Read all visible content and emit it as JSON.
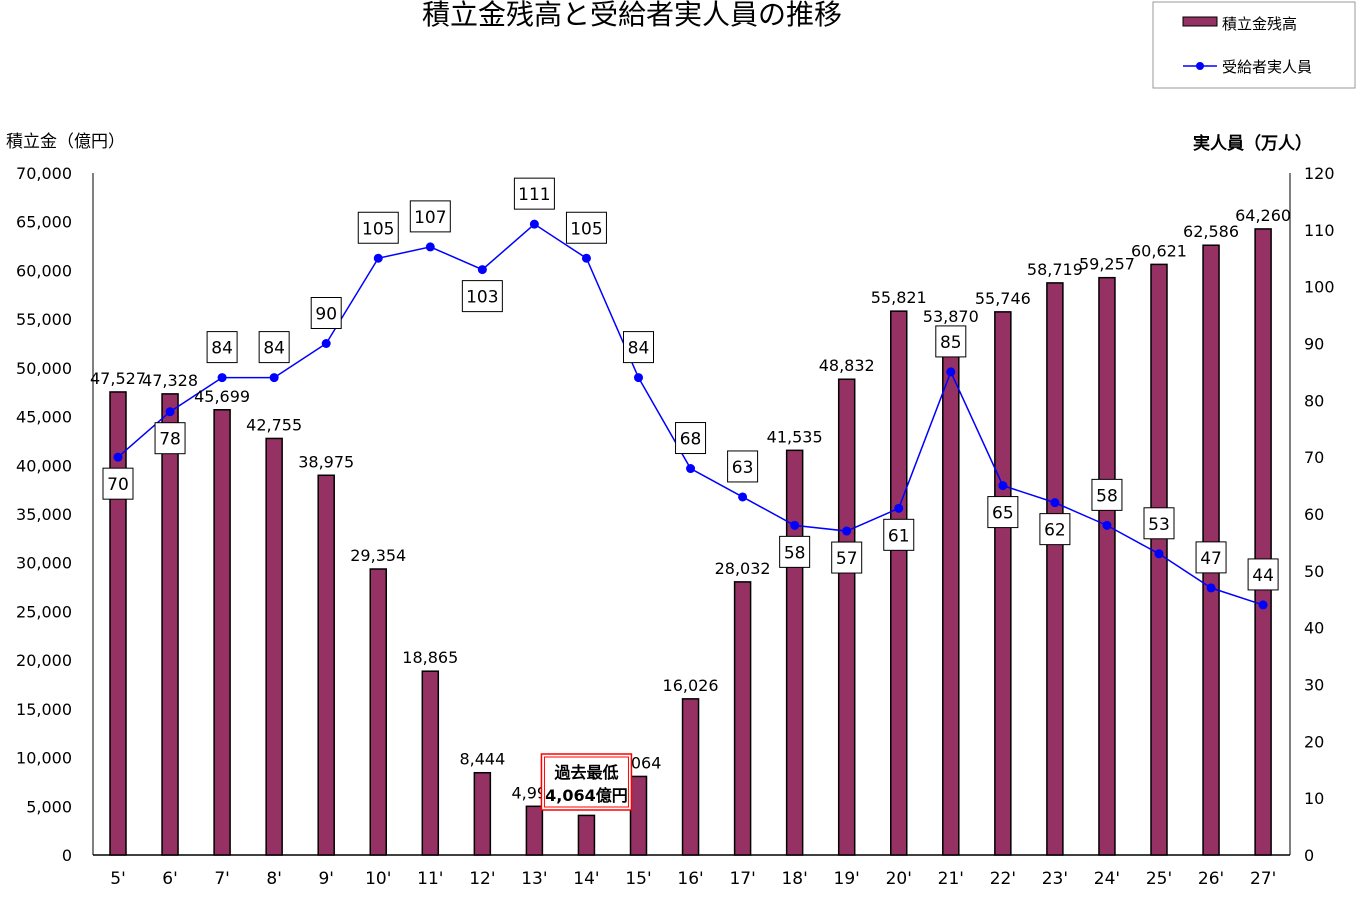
{
  "chart_data": {
    "type": "bar+line",
    "title": "積立金残高と受給者実人員の推移",
    "ylabel_left": "積立金（億円）",
    "ylabel_right": "実人員（万人）",
    "ylim_left": [
      0,
      70000
    ],
    "ylim_right": [
      0,
      120
    ],
    "yticks_left": [
      "0",
      "5,000",
      "10,000",
      "15,000",
      "20,000",
      "25,000",
      "30,000",
      "35,000",
      "40,000",
      "45,000",
      "50,000",
      "55,000",
      "60,000",
      "65,000",
      "70,000"
    ],
    "yticks_right": [
      "0",
      "10",
      "20",
      "30",
      "40",
      "50",
      "60",
      "70",
      "80",
      "90",
      "100",
      "110",
      "120"
    ],
    "categories": [
      "5'",
      "6'",
      "7'",
      "8'",
      "9'",
      "10'",
      "11'",
      "12'",
      "13'",
      "14'",
      "15'",
      "16'",
      "17'",
      "18'",
      "19'",
      "20'",
      "21'",
      "22'",
      "23'",
      "24'",
      "25'",
      "26'",
      "27'"
    ],
    "series": [
      {
        "name": "積立金残高",
        "type": "bar",
        "axis": "left",
        "color": "#953163",
        "values": [
          47527,
          47328,
          45699,
          42755,
          38975,
          29354,
          18865,
          8444,
          4998,
          4064,
          8064,
          16026,
          28032,
          41535,
          48832,
          55821,
          53870,
          55746,
          58719,
          59257,
          60621,
          62586,
          64260
        ],
        "labels": [
          "47,527",
          "47,328",
          "45,699",
          "42,755",
          "38,975",
          "29,354",
          "18,865",
          "8,444",
          "4,998",
          "",
          "8,064",
          "16,026",
          "28,032",
          "41,535",
          "48,832",
          "55,821",
          "53,870",
          "55,746",
          "58,719",
          "59,257",
          "60,621",
          "62,586",
          "64,260"
        ]
      },
      {
        "name": "受給者実人員",
        "type": "line",
        "axis": "right",
        "color": "#0000ff",
        "values": [
          70,
          78,
          84,
          84,
          90,
          105,
          107,
          103,
          111,
          105,
          84,
          68,
          63,
          58,
          57,
          61,
          85,
          65,
          62,
          58,
          53,
          47,
          44
        ],
        "label_side": [
          "below",
          "below",
          "above",
          "above",
          "above",
          "above",
          "above",
          "below",
          "above",
          "above",
          "above",
          "above",
          "above",
          "below",
          "below",
          "below",
          "above",
          "below",
          "below",
          "above",
          "above",
          "above",
          "above"
        ]
      }
    ],
    "annotation": {
      "line1": "過去最低",
      "line2": "4,064億円",
      "category": "14'",
      "border_color": "#ff0000"
    },
    "legend": {
      "placement": "top-right",
      "items": [
        "積立金残高",
        "受給者実人員"
      ]
    },
    "grid": false
  }
}
